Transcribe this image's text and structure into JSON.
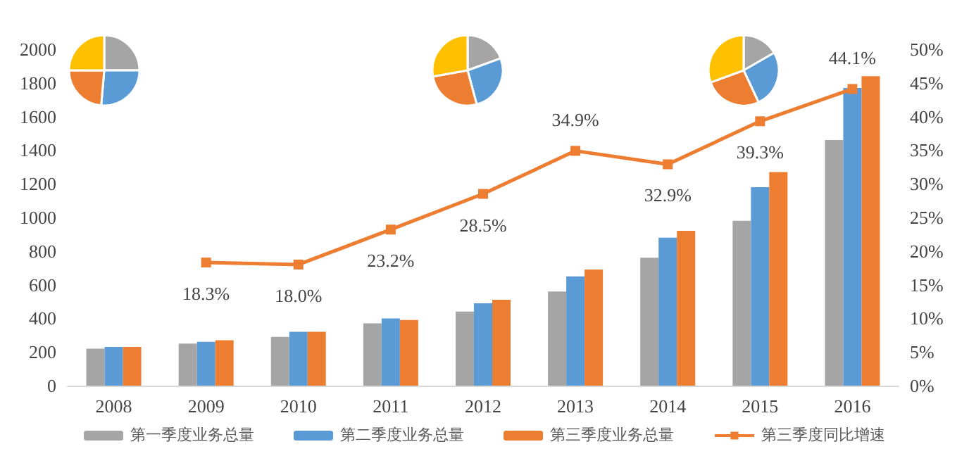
{
  "chart_data": {
    "type": "bar",
    "categories": [
      "2008",
      "2009",
      "2010",
      "2011",
      "2012",
      "2013",
      "2014",
      "2015",
      "2016"
    ],
    "series": [
      {
        "name": "第一季度业务总量",
        "color": "#a5a5a5",
        "values": [
          220,
          250,
          290,
          370,
          440,
          560,
          760,
          980,
          1460
        ]
      },
      {
        "name": "第二季度业务总量",
        "color": "#5b9bd5",
        "values": [
          230,
          260,
          320,
          400,
          490,
          650,
          880,
          1180,
          1770
        ]
      },
      {
        "name": "第三季度业务总量",
        "color": "#ed7d31",
        "values": [
          230,
          270,
          320,
          390,
          510,
          690,
          920,
          1270,
          1840
        ]
      },
      {
        "name": "第三季度同比增速",
        "type": "line",
        "axis": "y2",
        "color": "#ed7d31",
        "marker": "square",
        "values": [
          null,
          18.3,
          18.0,
          23.2,
          28.5,
          34.9,
          32.9,
          39.3,
          44.1
        ],
        "value_labels": [
          null,
          "18.3%",
          "18.0%",
          "23.2%",
          "28.5%",
          "34.9%",
          "32.9%",
          "39.3%",
          "44.1%"
        ]
      }
    ],
    "ylim": [
      0,
      2000
    ],
    "yticks": [
      0,
      200,
      400,
      600,
      800,
      1000,
      1200,
      1400,
      1600,
      1800,
      2000
    ],
    "y2lim": [
      0,
      50
    ],
    "y2ticks": [
      {
        "value": 0,
        "label": "0%"
      },
      {
        "value": 5,
        "label": "5%"
      },
      {
        "value": 10,
        "label": "10%"
      },
      {
        "value": 15,
        "label": "15%"
      },
      {
        "value": 20,
        "label": "20%"
      },
      {
        "value": 25,
        "label": "25%"
      },
      {
        "value": 30,
        "label": "30%"
      },
      {
        "value": 35,
        "label": "35%"
      },
      {
        "value": 40,
        "label": "40%"
      },
      {
        "value": 45,
        "label": "45%"
      },
      {
        "value": 50,
        "label": "50%"
      }
    ],
    "grid": false,
    "legend": "bottom"
  }
}
